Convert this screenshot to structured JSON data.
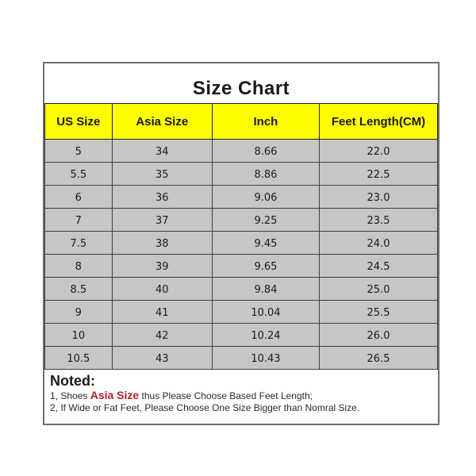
{
  "chart_data": {
    "type": "table",
    "title": "Size Chart",
    "columns": [
      "US Size",
      "Asia Size",
      "Inch",
      "Feet Length(CM)"
    ],
    "rows": [
      [
        "5",
        "34",
        "8.66",
        "22.0"
      ],
      [
        "5.5",
        "35",
        "8.86",
        "22.5"
      ],
      [
        "6",
        "36",
        "9.06",
        "23.0"
      ],
      [
        "7",
        "37",
        "9.25",
        "23.5"
      ],
      [
        "7.5",
        "38",
        "9.45",
        "24.0"
      ],
      [
        "8",
        "39",
        "9.65",
        "24.5"
      ],
      [
        "8.5",
        "40",
        "9.84",
        "25.0"
      ],
      [
        "9",
        "41",
        "10.04",
        "25.5"
      ],
      [
        "10",
        "42",
        "10.24",
        "26.0"
      ],
      [
        "10.5",
        "43",
        "10.43",
        "26.5"
      ]
    ]
  },
  "notes": {
    "heading": "Noted:",
    "line1": {
      "prefix": "1, Shoes ",
      "highlight": "Asia Size",
      "suffix": " thus Please Choose Based Feet Length;"
    },
    "line2": "2, If Wide or Fat Feet, Please Choose One Size Bigger than Nomral Size."
  },
  "colors": {
    "header_bg": "#ffff00",
    "row_bg": "#c6c6c6",
    "grid_line": "#3f3f3f",
    "outer_border": "#707070",
    "note_highlight": "#b22222",
    "page_bg": "#ffffff",
    "text": "#1a1a1a"
  }
}
